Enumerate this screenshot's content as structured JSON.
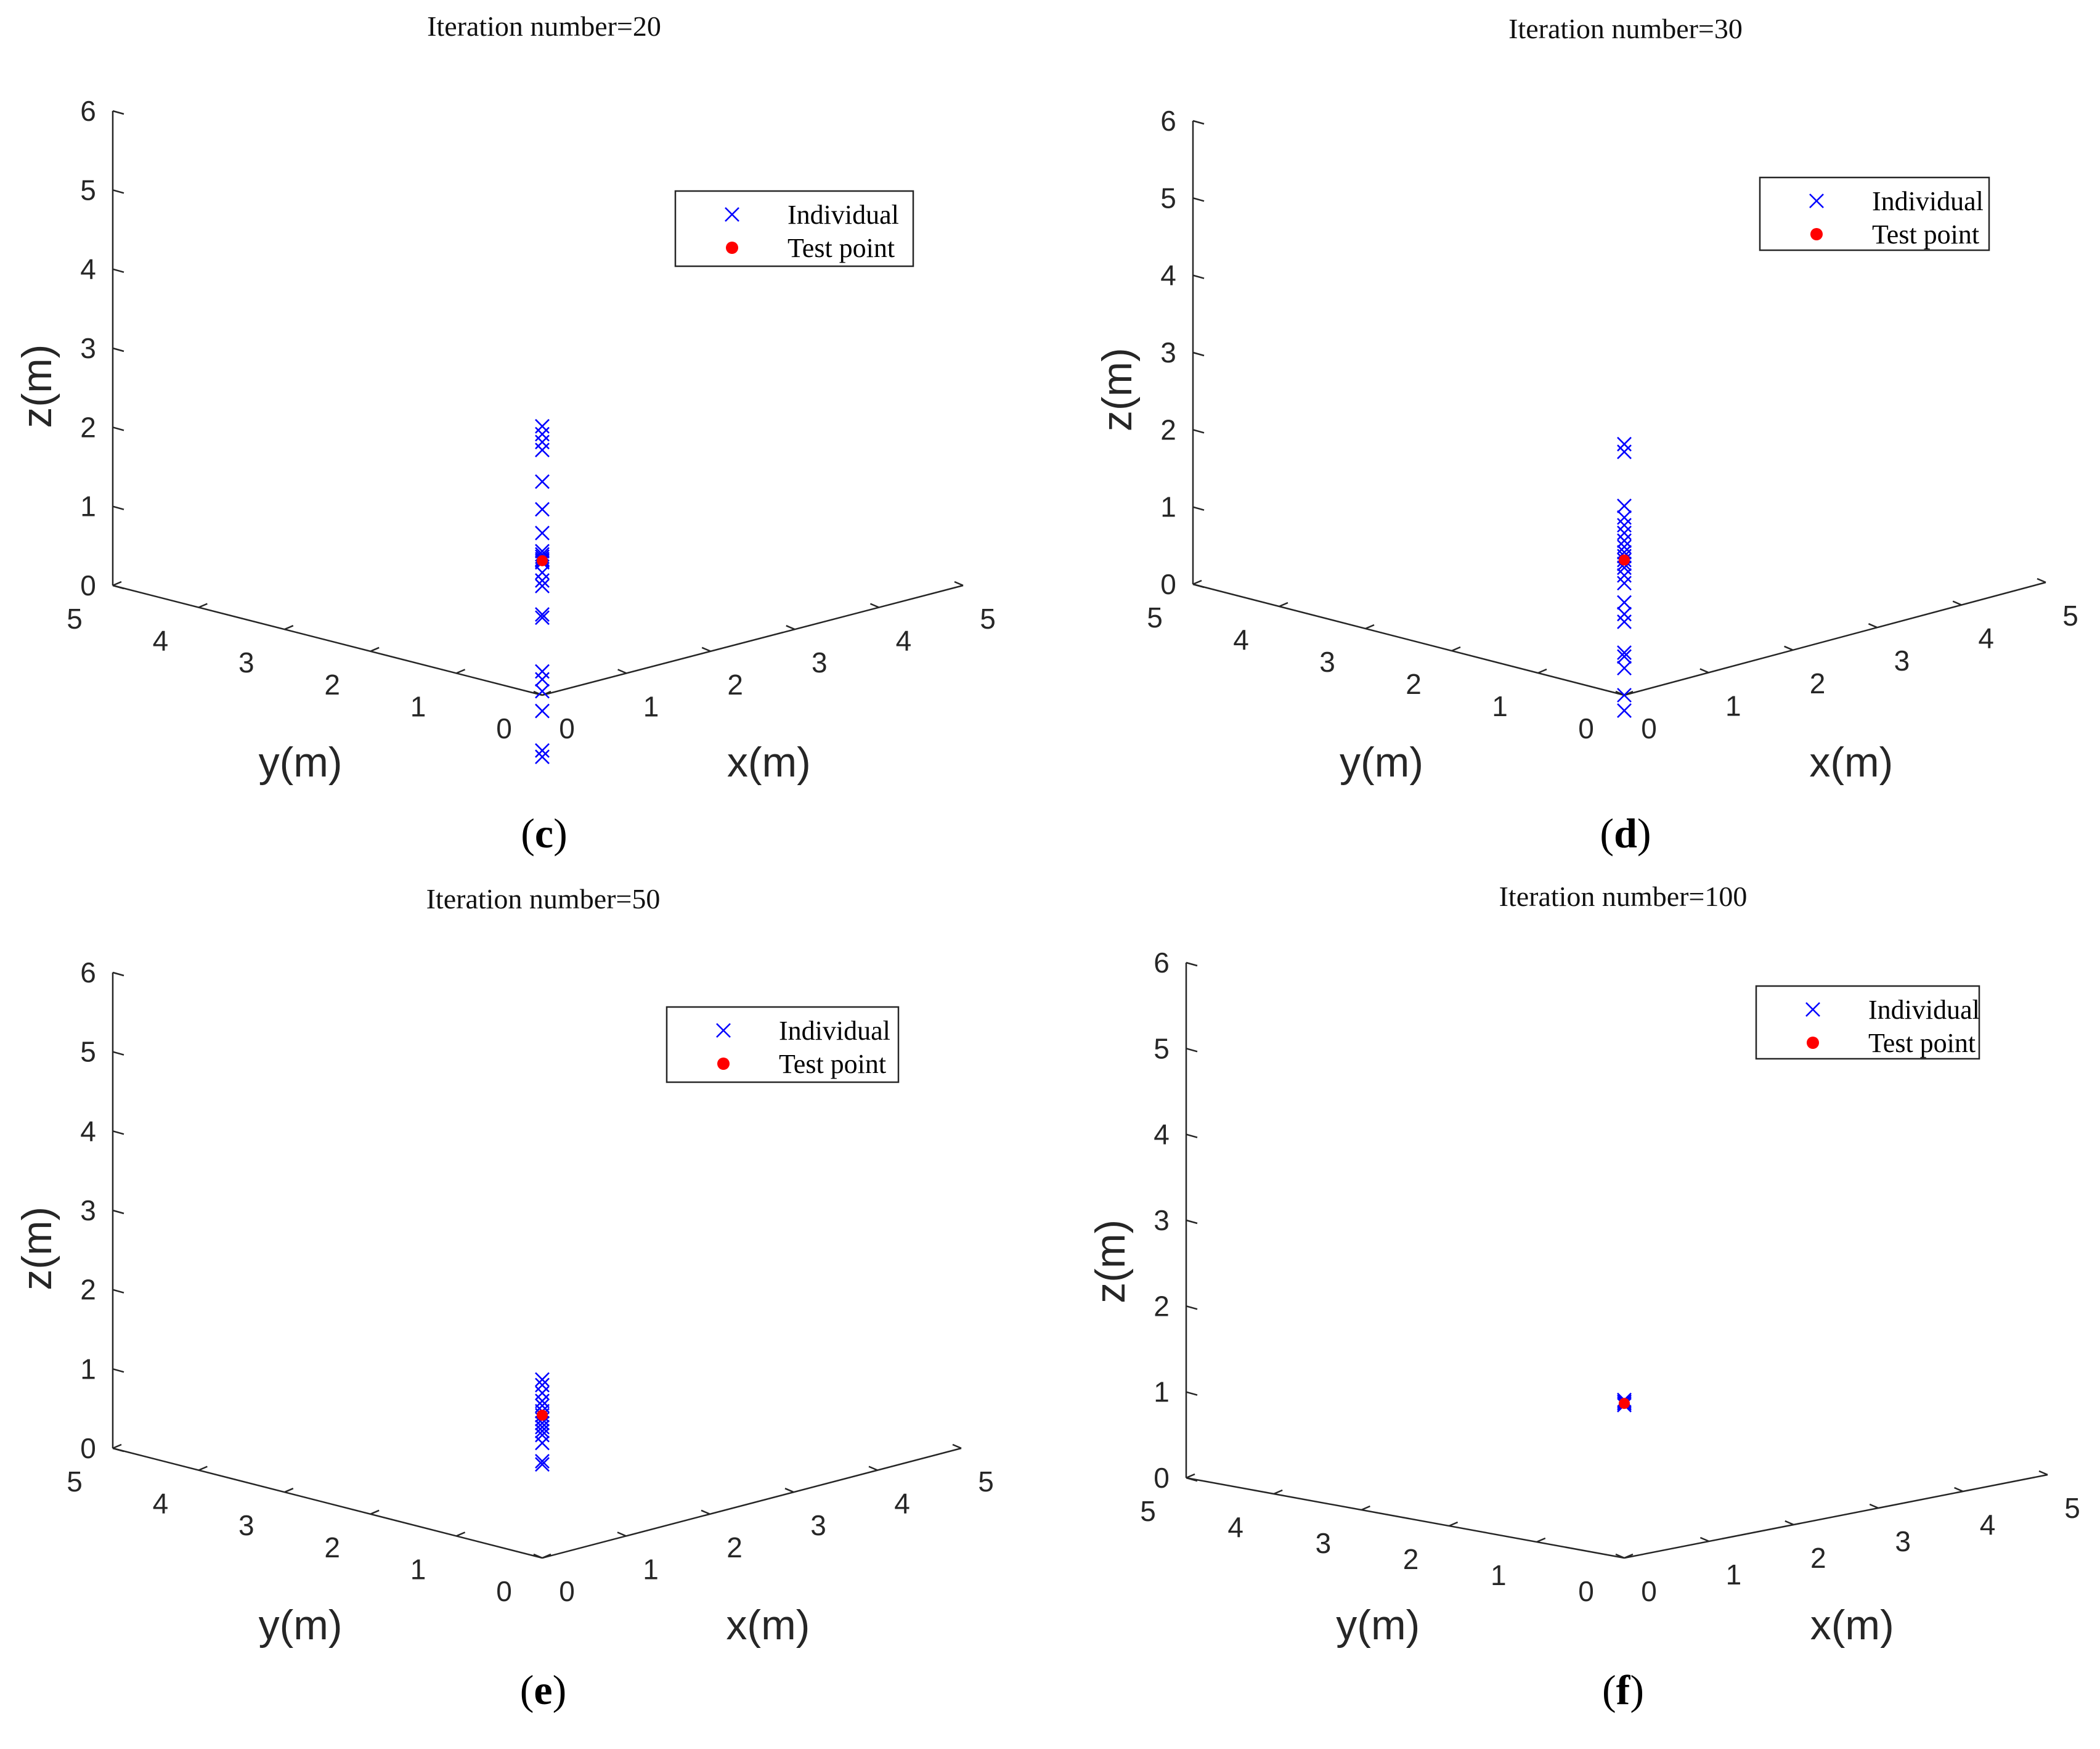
{
  "figure": {
    "background": "#ffffff",
    "series_colors": {
      "Individual": "#0000ff",
      "Test point": "#ff0000"
    }
  },
  "chart_data": [
    {
      "type": "scatter",
      "subplot": "c",
      "caption_letter": "c",
      "title": "Iteration number=20",
      "xlabel": "x(m)",
      "ylabel": "y(m)",
      "zlabel": "z(m)",
      "xlim": [
        0,
        5
      ],
      "ylim": [
        0,
        5
      ],
      "zlim": [
        0,
        6
      ],
      "xticks": [
        "0",
        "1",
        "2",
        "3",
        "4",
        "5"
      ],
      "yticks": [
        "0",
        "1",
        "2",
        "3",
        "4",
        "5"
      ],
      "zticks": [
        "0",
        "1",
        "2",
        "3",
        "4",
        "5",
        "6"
      ],
      "legend": {
        "entries": [
          "Individual",
          "Test point"
        ],
        "location": "top-right"
      },
      "series": [
        {
          "name": "Individual",
          "marker": "x",
          "color": "#0000ff",
          "x": 0,
          "y": 0,
          "z": [
            3.4,
            3.3,
            3.2,
            3.1,
            2.7,
            2.35,
            2.05,
            1.82,
            1.78,
            1.75,
            1.72,
            1.7,
            1.68,
            1.55,
            1.45,
            1.38,
            1.02,
            0.98,
            0.3,
            0.2,
            0.05,
            -0.2,
            -0.7,
            -0.78
          ]
        },
        {
          "name": "Test point",
          "marker": "o",
          "color": "#ff0000",
          "x": 0,
          "y": 0,
          "z": [
            1.7
          ]
        }
      ]
    },
    {
      "type": "scatter",
      "subplot": "d",
      "caption_letter": "d",
      "title": "Iteration number=30",
      "xlabel": "x(m)",
      "ylabel": "y(m)",
      "zlabel": "z(m)",
      "xlim": [
        0,
        5
      ],
      "ylim": [
        0,
        5
      ],
      "zlim": [
        0,
        6
      ],
      "xticks": [
        "0",
        "1",
        "2",
        "3",
        "4",
        "5"
      ],
      "yticks": [
        "0",
        "1",
        "2",
        "3",
        "4",
        "5"
      ],
      "zticks": [
        "0",
        "1",
        "2",
        "3",
        "4",
        "5",
        "6"
      ],
      "legend": {
        "entries": [
          "Individual",
          "Test point"
        ],
        "location": "top-right"
      },
      "series": [
        {
          "name": "Individual",
          "marker": "x",
          "color": "#0000ff",
          "x": 0,
          "y": 0,
          "z": [
            3.25,
            3.15,
            2.45,
            2.3,
            2.2,
            2.1,
            2.0,
            1.92,
            1.85,
            1.8,
            1.75,
            1.7,
            1.65,
            1.55,
            1.45,
            1.2,
            1.05,
            0.95,
            0.55,
            0.5,
            0.35,
            0.0,
            -0.2
          ]
        },
        {
          "name": "Test point",
          "marker": "o",
          "color": "#ff0000",
          "x": 0,
          "y": 0,
          "z": [
            1.75
          ]
        }
      ]
    },
    {
      "type": "scatter",
      "subplot": "e",
      "caption_letter": "e",
      "title": "Iteration number=50",
      "xlabel": "x(m)",
      "ylabel": "y(m)",
      "zlabel": "z(m)",
      "xlim": [
        0,
        5
      ],
      "ylim": [
        0,
        5
      ],
      "zlim": [
        0,
        6
      ],
      "xticks": [
        "0",
        "1",
        "2",
        "3",
        "4",
        "5"
      ],
      "yticks": [
        "0",
        "1",
        "2",
        "3",
        "4",
        "5"
      ],
      "zticks": [
        "0",
        "1",
        "2",
        "3",
        "4",
        "5",
        "6"
      ],
      "legend": {
        "entries": [
          "Individual",
          "Test point"
        ],
        "location": "top-right"
      },
      "series": [
        {
          "name": "Individual",
          "marker": "x",
          "color": "#0000ff",
          "x": 0,
          "y": 0,
          "z": [
            2.25,
            2.18,
            2.08,
            1.98,
            1.92,
            1.85,
            1.8,
            1.75,
            1.7,
            1.65,
            1.6,
            1.55,
            1.45,
            1.22,
            1.18
          ]
        },
        {
          "name": "Test point",
          "marker": "o",
          "color": "#ff0000",
          "x": 0,
          "y": 0,
          "z": [
            1.8
          ]
        }
      ]
    },
    {
      "type": "scatter",
      "subplot": "f",
      "caption_letter": "f",
      "title": "Iteration number=100",
      "xlabel": "x(m)",
      "ylabel": "y(m)",
      "zlabel": "z(m)",
      "xlim": [
        0,
        5
      ],
      "ylim": [
        0,
        5
      ],
      "zlim": [
        0,
        6
      ],
      "xticks": [
        "0",
        "1",
        "2",
        "3",
        "4",
        "5"
      ],
      "yticks": [
        "0",
        "1",
        "2",
        "3",
        "4",
        "5"
      ],
      "zticks": [
        "0",
        "1",
        "2",
        "3",
        "4",
        "5",
        "6"
      ],
      "legend": {
        "entries": [
          "Individual",
          "Test point"
        ],
        "location": "top-right"
      },
      "series": [
        {
          "name": "Individual",
          "marker": "x",
          "color": "#0000ff",
          "x": 0,
          "y": 0,
          "z": [
            1.84,
            1.82,
            1.8,
            1.78
          ]
        },
        {
          "name": "Test point",
          "marker": "o",
          "color": "#ff0000",
          "x": 0,
          "y": 0,
          "z": [
            1.8
          ]
        }
      ]
    }
  ]
}
